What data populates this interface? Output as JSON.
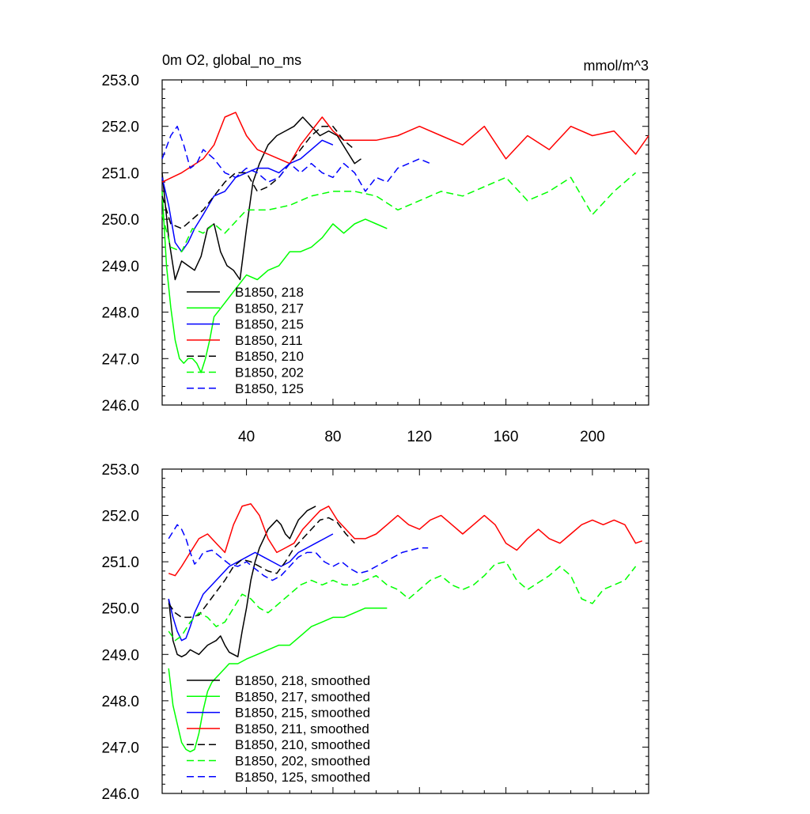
{
  "header": {
    "left": "0m O2, global_no_ms",
    "right": "mmol/m^3"
  },
  "chart_data": [
    {
      "type": "line",
      "panel": "top",
      "xlim": [
        1,
        226
      ],
      "ylim": [
        246,
        253
      ],
      "x_tick_labels": [
        40,
        80,
        120,
        160,
        200
      ],
      "y_tick_labels": [
        "253.0",
        "252.0",
        "251.0",
        "250.0",
        "249.0",
        "248.0",
        "247.0",
        "246.0"
      ],
      "y_tick_values": [
        253,
        252,
        251,
        250,
        249,
        248,
        247,
        246
      ],
      "legend_position": "bottom-left",
      "series": [
        {
          "name": "B1850, 218",
          "color": "#000000",
          "dash": "solid",
          "x": [
            1,
            4,
            7,
            10,
            13,
            16,
            19,
            22,
            25,
            28,
            31,
            34,
            37,
            40,
            43,
            46,
            50,
            54,
            58,
            62,
            66,
            70,
            74,
            78,
            82,
            86,
            90,
            93
          ],
          "y": [
            251.0,
            249.6,
            248.7,
            249.1,
            249.0,
            248.9,
            249.2,
            249.8,
            249.9,
            249.3,
            249.0,
            248.9,
            248.7,
            249.8,
            250.8,
            251.2,
            251.6,
            251.8,
            251.9,
            252.0,
            252.2,
            252.0,
            251.8,
            251.9,
            251.8,
            251.5,
            251.2,
            251.3
          ]
        },
        {
          "name": "B1850, 217",
          "color": "#00ff00",
          "dash": "solid",
          "x": [
            1,
            3,
            5,
            7,
            9,
            11,
            13,
            15,
            17,
            19,
            21,
            23,
            25,
            30,
            35,
            40,
            45,
            50,
            55,
            60,
            65,
            70,
            75,
            80,
            85,
            90,
            95,
            100,
            105
          ],
          "y": [
            250.6,
            249.0,
            248.1,
            247.4,
            247.0,
            246.9,
            247.0,
            247.0,
            246.9,
            246.7,
            247.0,
            247.4,
            247.9,
            248.2,
            248.5,
            248.8,
            248.7,
            248.9,
            249.0,
            249.3,
            249.3,
            249.4,
            249.6,
            249.9,
            249.7,
            249.9,
            250.0,
            249.9,
            249.8
          ]
        },
        {
          "name": "B1850, 215",
          "color": "#0000ff",
          "dash": "solid",
          "x": [
            1,
            4,
            7,
            10,
            13,
            16,
            20,
            25,
            30,
            35,
            40,
            45,
            50,
            55,
            60,
            65,
            70,
            75,
            80
          ],
          "y": [
            250.9,
            250.3,
            249.5,
            249.3,
            249.5,
            249.8,
            250.1,
            250.5,
            250.6,
            250.9,
            251.0,
            251.1,
            251.1,
            251.0,
            251.2,
            251.3,
            251.5,
            251.7,
            251.6
          ]
        },
        {
          "name": "B1850, 211",
          "color": "#ff0000",
          "dash": "solid",
          "x": [
            1,
            10,
            20,
            25,
            30,
            35,
            40,
            45,
            50,
            55,
            60,
            65,
            70,
            75,
            80,
            85,
            90,
            100,
            110,
            120,
            130,
            140,
            150,
            160,
            170,
            180,
            190,
            200,
            210,
            220,
            226
          ],
          "y": [
            250.8,
            251.0,
            251.3,
            251.6,
            252.2,
            252.3,
            251.8,
            251.5,
            251.4,
            251.3,
            251.2,
            251.6,
            251.9,
            252.2,
            251.9,
            251.7,
            251.7,
            251.7,
            251.8,
            252.0,
            251.8,
            251.6,
            252.0,
            251.3,
            251.8,
            251.5,
            252.0,
            251.8,
            251.9,
            251.4,
            251.8
          ]
        },
        {
          "name": "B1850, 210",
          "color": "#000000",
          "dash": "dashed",
          "x": [
            1,
            5,
            10,
            15,
            20,
            25,
            30,
            35,
            40,
            45,
            50,
            55,
            60,
            65,
            70,
            75,
            80,
            85,
            90
          ],
          "y": [
            250.5,
            249.9,
            249.8,
            250.0,
            250.2,
            250.5,
            250.8,
            251.0,
            251.0,
            250.6,
            250.7,
            250.9,
            251.2,
            251.5,
            251.8,
            252.0,
            252.0,
            251.7,
            251.5
          ]
        },
        {
          "name": "B1850, 202",
          "color": "#00ff00",
          "dash": "dashed",
          "x": [
            1,
            5,
            10,
            15,
            20,
            25,
            30,
            40,
            50,
            60,
            70,
            80,
            90,
            100,
            110,
            120,
            130,
            140,
            150,
            160,
            170,
            180,
            190,
            200,
            210,
            220
          ],
          "y": [
            250.1,
            249.4,
            249.3,
            249.8,
            249.7,
            249.9,
            249.7,
            250.2,
            250.2,
            250.3,
            250.5,
            250.6,
            250.6,
            250.5,
            250.2,
            250.4,
            250.6,
            250.5,
            250.7,
            250.9,
            250.4,
            250.6,
            250.9,
            250.1,
            250.6,
            251.0
          ]
        },
        {
          "name": "B1850, 125",
          "color": "#0000ff",
          "dash": "dashed",
          "x": [
            1,
            5,
            8,
            11,
            14,
            17,
            20,
            25,
            30,
            35,
            40,
            45,
            50,
            55,
            60,
            65,
            70,
            75,
            80,
            85,
            90,
            95,
            100,
            105,
            110,
            115,
            120,
            125
          ],
          "y": [
            251.3,
            251.8,
            252.0,
            251.6,
            251.1,
            251.2,
            251.5,
            251.3,
            251.0,
            250.9,
            251.1,
            251.0,
            250.8,
            250.9,
            251.2,
            251.0,
            251.2,
            251.0,
            250.9,
            251.2,
            251.0,
            250.6,
            250.9,
            250.8,
            251.1,
            251.2,
            251.3,
            251.2
          ]
        }
      ]
    },
    {
      "type": "line",
      "panel": "bottom",
      "xlim": [
        1,
        226
      ],
      "ylim": [
        246,
        253
      ],
      "y_tick_labels": [
        "253.0",
        "252.0",
        "251.0",
        "250.0",
        "249.0",
        "248.0",
        "247.0",
        "246.0"
      ],
      "y_tick_values": [
        253,
        252,
        251,
        250,
        249,
        248,
        247,
        246
      ],
      "legend_position": "bottom-left",
      "series": [
        {
          "name": "B1850, 218, smoothed",
          "color": "#000000",
          "dash": "solid",
          "x": [
            4,
            6,
            8,
            10,
            12,
            14,
            16,
            18,
            20,
            22,
            24,
            26,
            28,
            30,
            32,
            34,
            36,
            38,
            40,
            42,
            44,
            46,
            48,
            50,
            52,
            54,
            56,
            58,
            60,
            62,
            64,
            66,
            68,
            70,
            72
          ],
          "y": [
            250.2,
            249.3,
            249.0,
            248.95,
            249.0,
            249.1,
            249.05,
            249.0,
            249.1,
            249.2,
            249.25,
            249.3,
            249.4,
            249.2,
            249.05,
            249.0,
            248.95,
            249.5,
            250.0,
            250.6,
            251.0,
            251.3,
            251.5,
            251.7,
            251.8,
            251.9,
            251.8,
            251.6,
            251.5,
            251.7,
            251.9,
            252.0,
            252.1,
            252.15,
            252.2
          ]
        },
        {
          "name": "B1850, 217, smoothed",
          "color": "#00ff00",
          "dash": "solid",
          "x": [
            4,
            6,
            8,
            10,
            12,
            14,
            16,
            18,
            20,
            22,
            24,
            26,
            28,
            30,
            32,
            34,
            36,
            40,
            45,
            50,
            55,
            60,
            65,
            70,
            75,
            80,
            85,
            90,
            95,
            100,
            105
          ],
          "y": [
            248.7,
            247.9,
            247.5,
            247.1,
            246.95,
            246.9,
            246.95,
            247.3,
            247.8,
            248.2,
            248.4,
            248.5,
            248.6,
            248.7,
            248.8,
            248.8,
            248.8,
            248.9,
            249.0,
            249.1,
            249.2,
            249.2,
            249.4,
            249.6,
            249.7,
            249.8,
            249.8,
            249.9,
            250.0,
            250.0,
            250.0
          ]
        },
        {
          "name": "B1850, 215, smoothed",
          "color": "#0000ff",
          "dash": "solid",
          "x": [
            4,
            6,
            8,
            10,
            12,
            14,
            16,
            18,
            20,
            24,
            28,
            32,
            36,
            40,
            44,
            48,
            52,
            56,
            60,
            64,
            68,
            72,
            76,
            80
          ],
          "y": [
            250.2,
            249.8,
            249.5,
            249.3,
            249.35,
            249.6,
            249.9,
            250.1,
            250.3,
            250.5,
            250.7,
            250.9,
            251.0,
            251.1,
            251.2,
            251.1,
            251.0,
            250.9,
            251.0,
            251.2,
            251.3,
            251.4,
            251.5,
            251.6
          ]
        },
        {
          "name": "B1850, 211, smoothed",
          "color": "#ff0000",
          "dash": "solid",
          "x": [
            4,
            7,
            10,
            14,
            18,
            22,
            26,
            30,
            34,
            38,
            42,
            46,
            50,
            54,
            58,
            62,
            66,
            70,
            74,
            78,
            82,
            86,
            90,
            95,
            100,
            105,
            110,
            115,
            120,
            125,
            130,
            135,
            140,
            145,
            150,
            155,
            160,
            165,
            170,
            175,
            180,
            185,
            190,
            195,
            200,
            205,
            210,
            215,
            220,
            223
          ],
          "y": [
            250.75,
            250.7,
            250.9,
            251.2,
            251.5,
            251.6,
            251.4,
            251.2,
            251.8,
            252.2,
            252.25,
            252.0,
            251.5,
            251.2,
            251.3,
            251.4,
            251.7,
            251.9,
            252.1,
            252.2,
            251.9,
            251.7,
            251.5,
            251.5,
            251.6,
            251.8,
            252.0,
            251.8,
            251.7,
            251.9,
            252.0,
            251.8,
            251.6,
            251.8,
            252.0,
            251.8,
            251.4,
            251.25,
            251.5,
            251.7,
            251.5,
            251.4,
            251.6,
            251.8,
            251.9,
            251.8,
            251.9,
            251.8,
            251.4,
            251.45
          ]
        },
        {
          "name": "B1850, 210, smoothed",
          "color": "#000000",
          "dash": "dashed",
          "x": [
            4,
            7,
            10,
            14,
            18,
            22,
            26,
            30,
            34,
            38,
            42,
            46,
            50,
            54,
            58,
            62,
            66,
            70,
            74,
            78,
            82,
            86,
            90
          ],
          "y": [
            250.1,
            249.9,
            249.8,
            249.8,
            249.85,
            250.1,
            250.35,
            250.6,
            250.9,
            251.05,
            251.0,
            250.9,
            250.8,
            250.75,
            251.0,
            251.3,
            251.5,
            251.7,
            251.9,
            251.95,
            251.85,
            251.6,
            251.4
          ]
        },
        {
          "name": "B1850, 202, smoothed",
          "color": "#00ff00",
          "dash": "dashed",
          "x": [
            4,
            7,
            10,
            14,
            18,
            22,
            26,
            30,
            34,
            38,
            42,
            46,
            50,
            55,
            60,
            65,
            70,
            75,
            80,
            85,
            90,
            95,
            100,
            105,
            110,
            115,
            120,
            125,
            130,
            135,
            140,
            145,
            150,
            155,
            160,
            165,
            170,
            175,
            180,
            185,
            190,
            195,
            200,
            205,
            210,
            215,
            220
          ],
          "y": [
            249.5,
            249.3,
            249.4,
            249.7,
            249.9,
            249.8,
            249.6,
            249.7,
            250.0,
            250.3,
            250.2,
            250.0,
            249.9,
            250.1,
            250.3,
            250.5,
            250.6,
            250.5,
            250.6,
            250.5,
            250.5,
            250.6,
            250.7,
            250.5,
            250.4,
            250.2,
            250.4,
            250.6,
            250.7,
            250.5,
            250.4,
            250.5,
            250.7,
            250.95,
            251.0,
            250.6,
            250.4,
            250.55,
            250.7,
            250.9,
            250.7,
            250.2,
            250.1,
            250.4,
            250.5,
            250.6,
            250.9
          ]
        },
        {
          "name": "B1850, 125, smoothed",
          "color": "#0000ff",
          "dash": "dashed",
          "x": [
            4,
            6,
            8,
            10,
            12,
            14,
            16,
            18,
            20,
            24,
            28,
            32,
            36,
            40,
            44,
            48,
            52,
            56,
            60,
            64,
            68,
            72,
            76,
            80,
            84,
            88,
            92,
            96,
            100,
            104,
            108,
            112,
            116,
            120,
            124
          ],
          "y": [
            251.5,
            251.65,
            251.8,
            251.7,
            251.5,
            251.2,
            250.95,
            251.05,
            251.2,
            251.25,
            251.1,
            250.95,
            250.9,
            251.0,
            250.85,
            250.7,
            250.6,
            250.7,
            250.9,
            251.1,
            251.2,
            251.2,
            251.0,
            250.9,
            251.0,
            250.85,
            250.75,
            250.8,
            250.9,
            251.0,
            251.1,
            251.2,
            251.25,
            251.3,
            251.3
          ]
        }
      ]
    }
  ]
}
